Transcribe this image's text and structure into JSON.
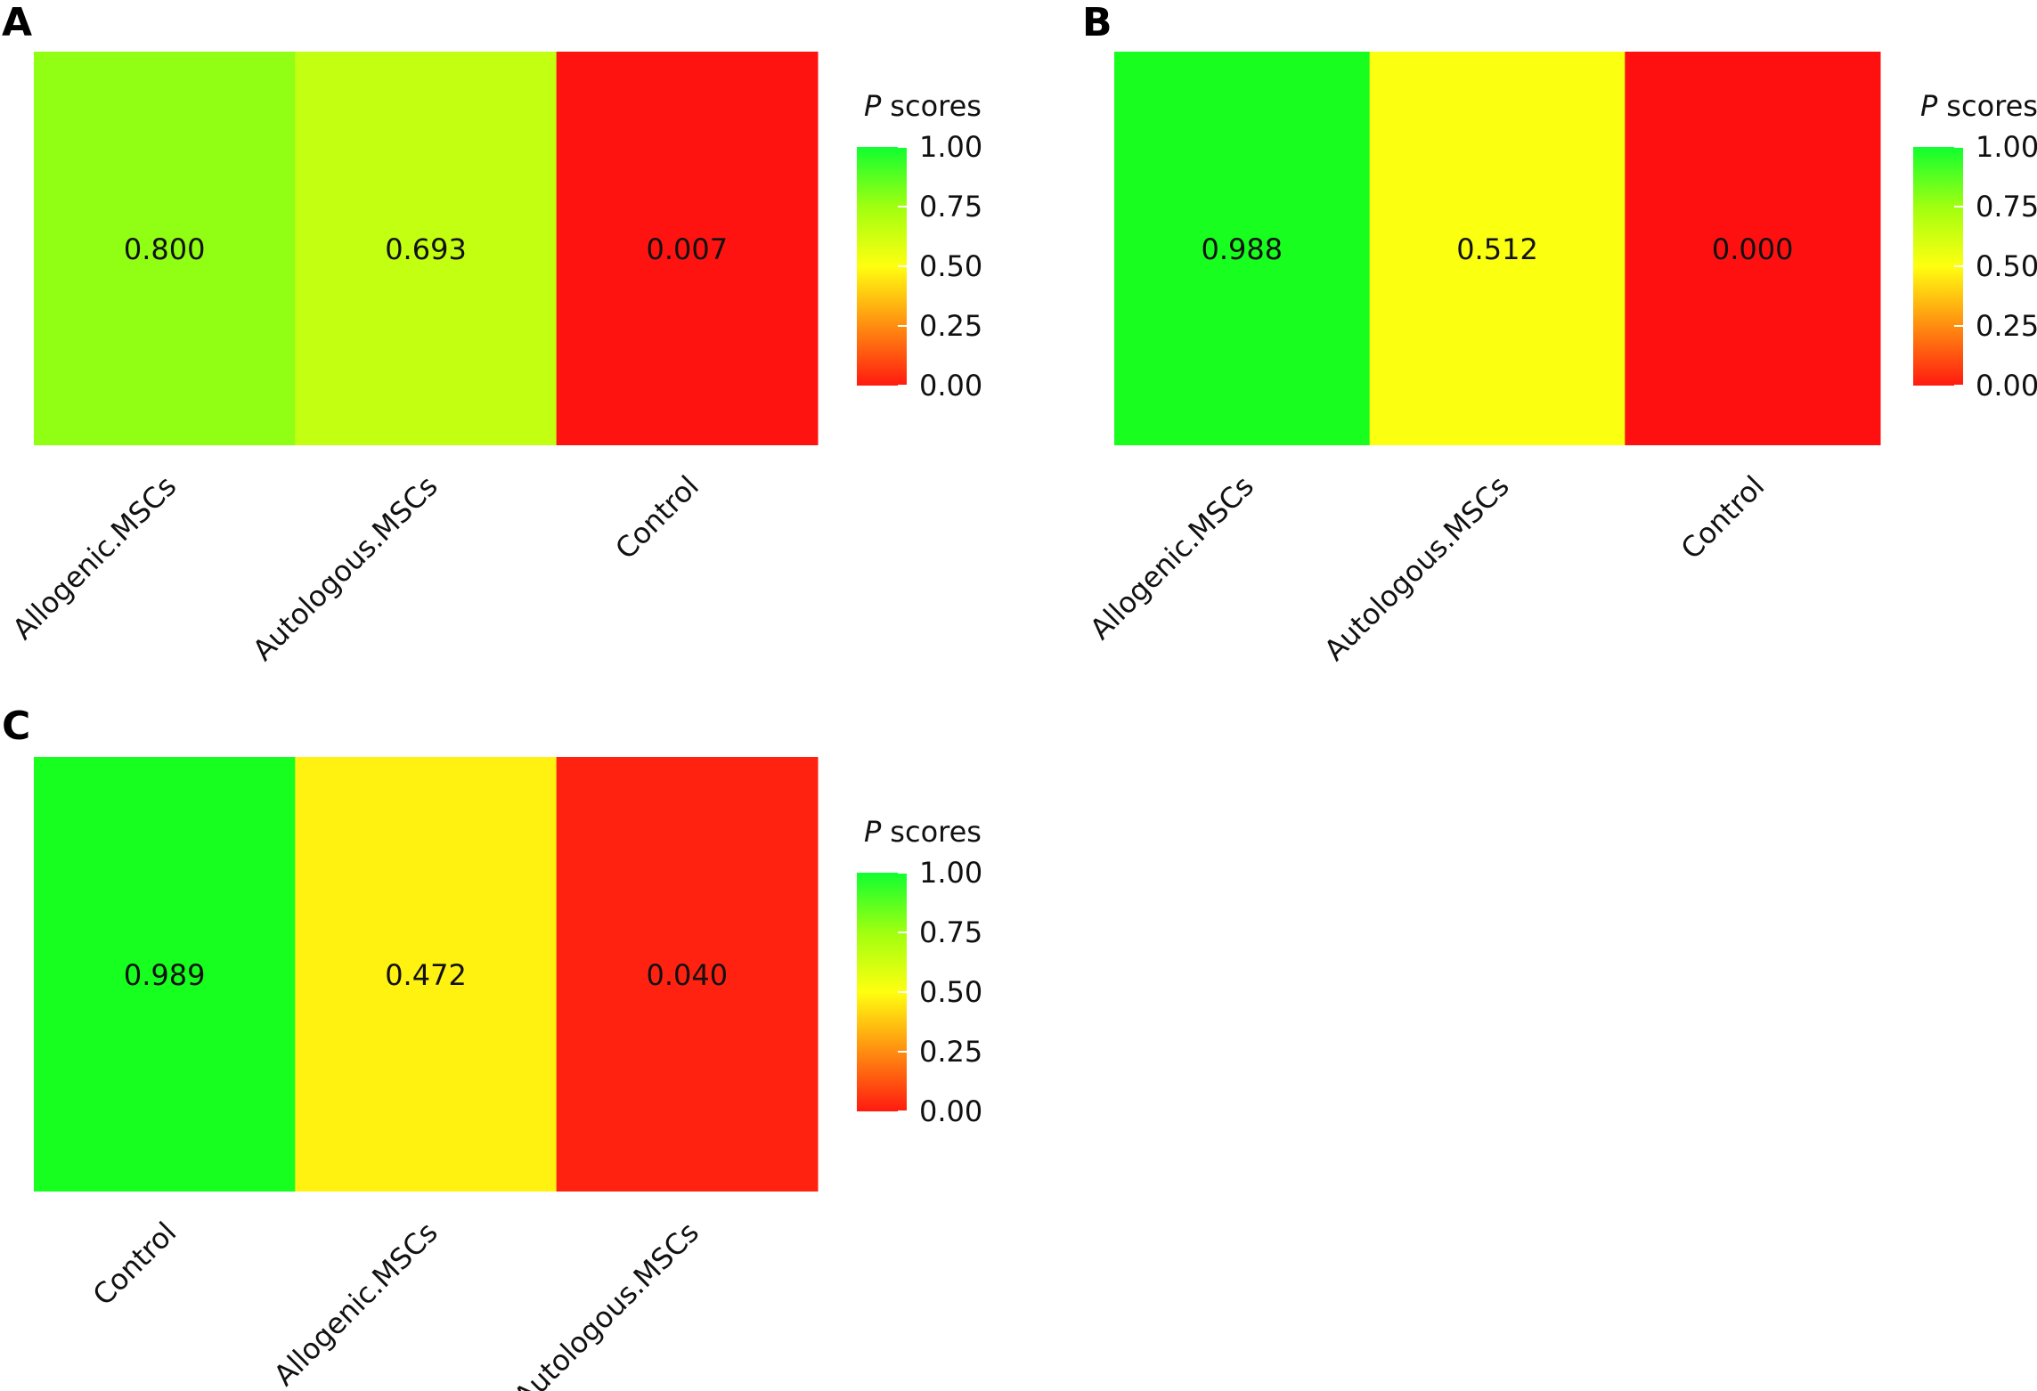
{
  "legend": {
    "title_italic": "P",
    "title_rest": "scores",
    "ticks": [
      "1.00",
      "0.75",
      "0.50",
      "0.25",
      "0.00"
    ],
    "tick_values": [
      1.0,
      0.75,
      0.5,
      0.25,
      0.0
    ]
  },
  "colors": {
    "low": "#ff1010",
    "mid_low": "#ff8010",
    "mid": "#ffff10",
    "high": "#10ff10"
  },
  "chart_data": [
    {
      "panel": "A",
      "type": "heatmap",
      "categories": [
        "Allogenic.MSCs",
        "Autologous.MSCs",
        "Control"
      ],
      "values": [
        0.8,
        0.693,
        0.007
      ],
      "labels": [
        "0.800",
        "0.693",
        "0.007"
      ],
      "legend_title": "P scores",
      "scale": [
        0,
        1
      ]
    },
    {
      "panel": "B",
      "type": "heatmap",
      "categories": [
        "Allogenic.MSCs",
        "Autologous.MSCs",
        "Control"
      ],
      "values": [
        0.988,
        0.512,
        0.0
      ],
      "labels": [
        "0.988",
        "0.512",
        "0.000"
      ],
      "legend_title": "P scores",
      "scale": [
        0,
        1
      ]
    },
    {
      "panel": "C",
      "type": "heatmap",
      "categories": [
        "Control",
        "Allogenic.MSCs",
        "Autologous.MSCs"
      ],
      "values": [
        0.989,
        0.472,
        0.04
      ],
      "labels": [
        "0.989",
        "0.472",
        "0.040"
      ],
      "legend_title": "P scores",
      "scale": [
        0,
        1
      ]
    }
  ]
}
